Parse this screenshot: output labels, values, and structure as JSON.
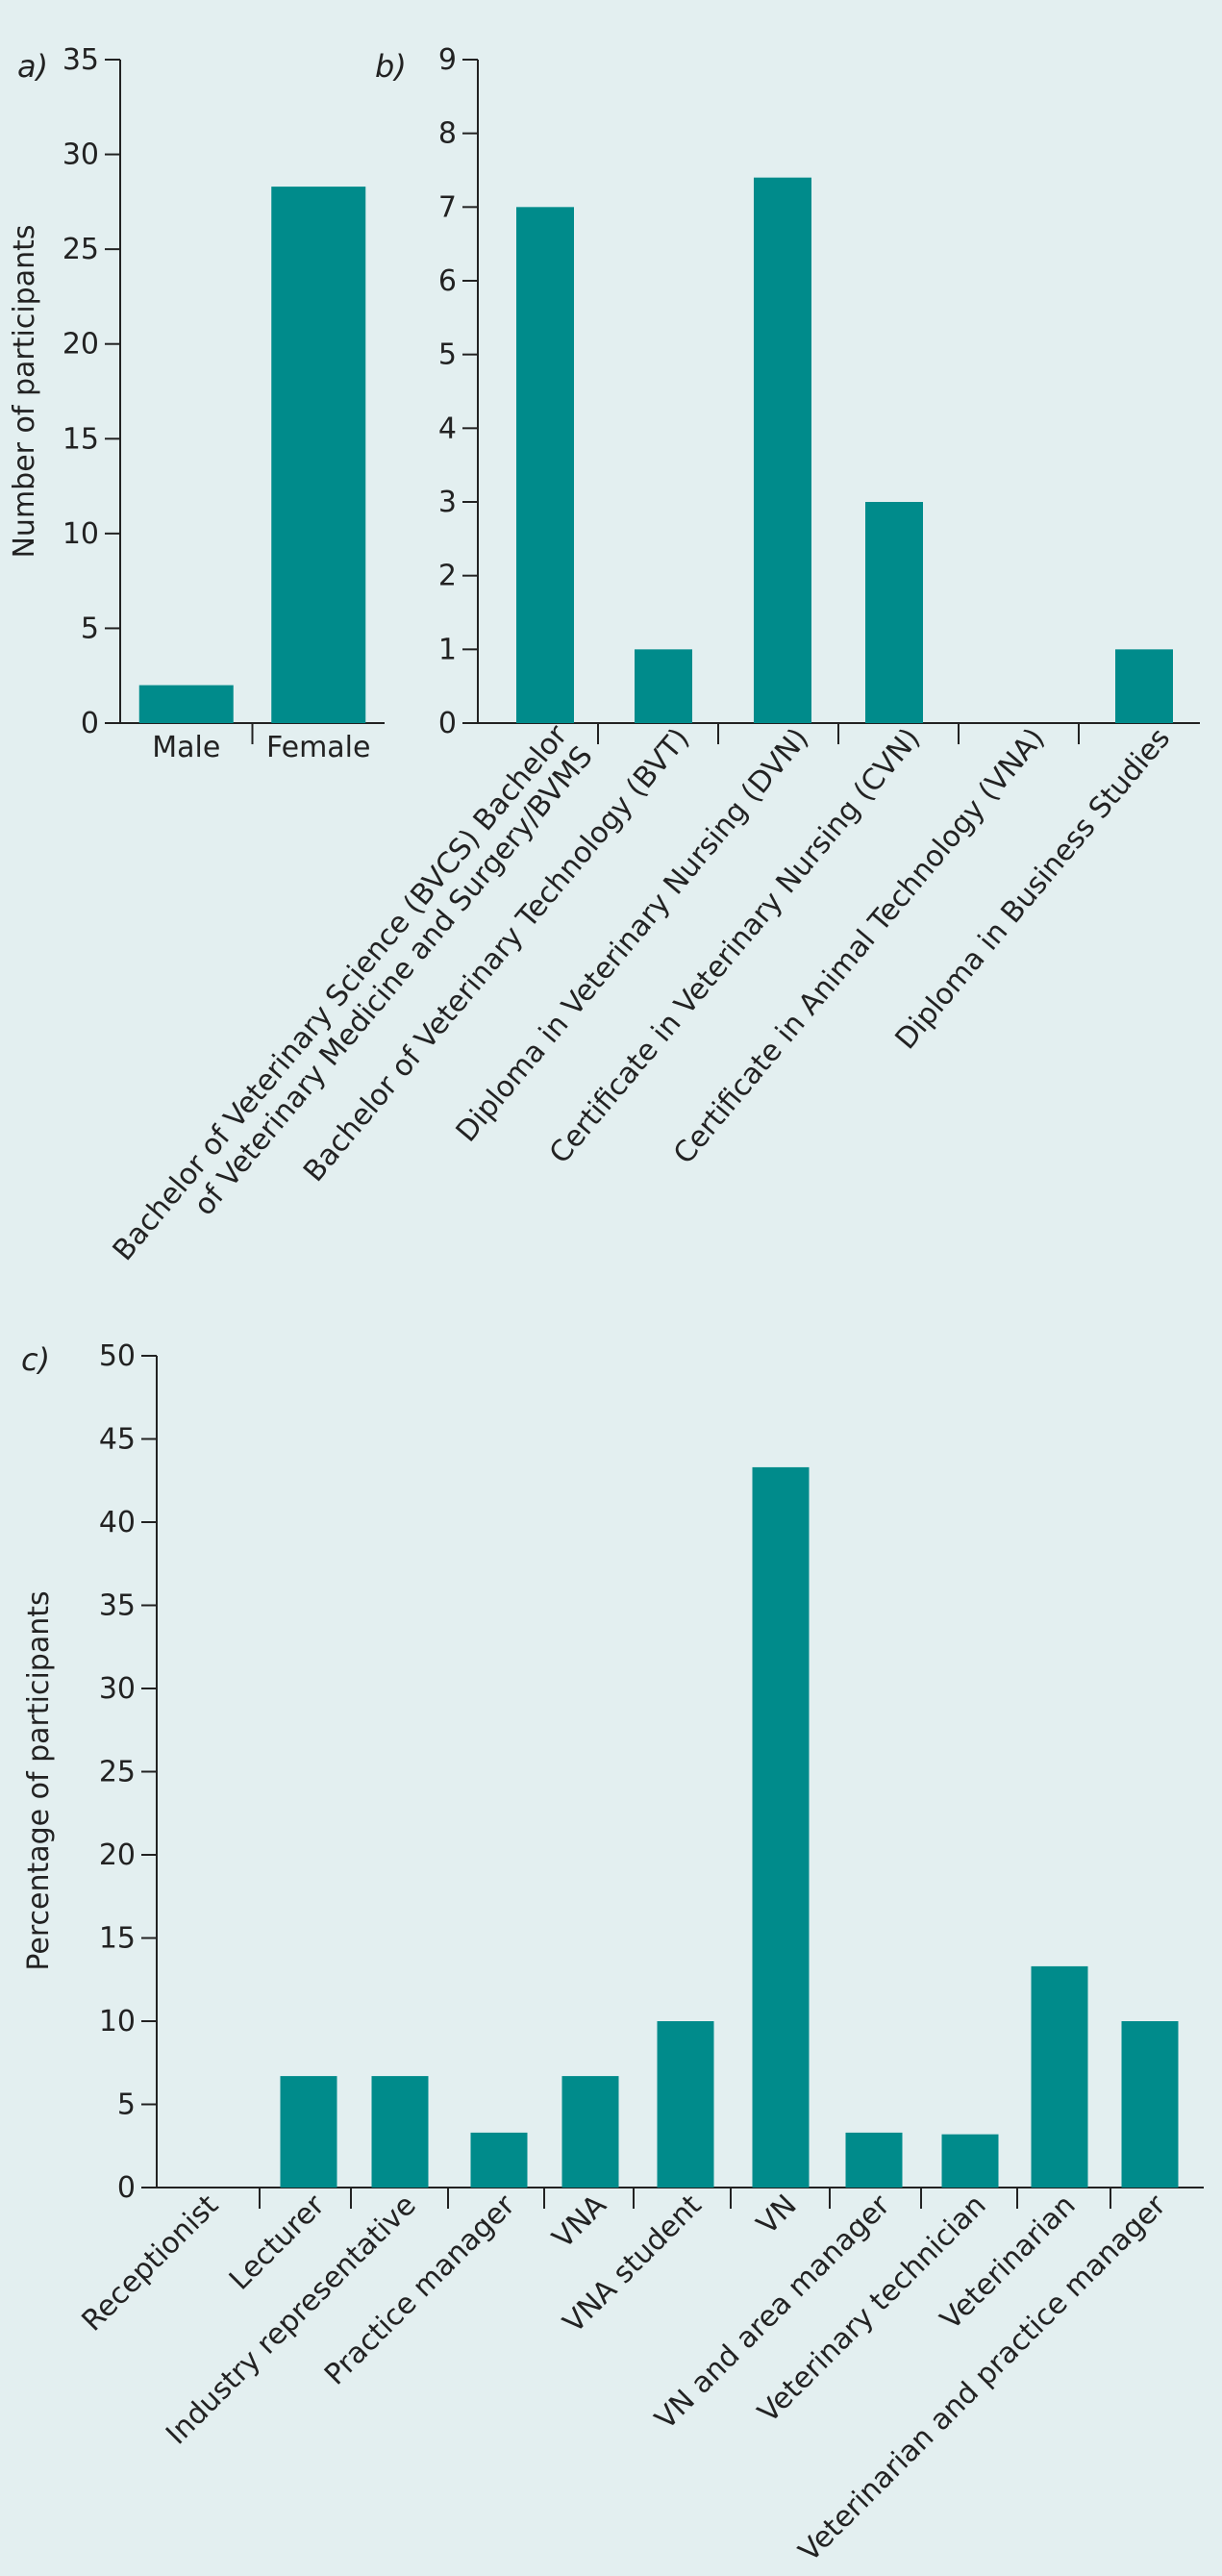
{
  "chart_data": [
    {
      "panel": "a)",
      "type": "bar",
      "categories": [
        "Male",
        "Female"
      ],
      "values": [
        2,
        28.3
      ],
      "ylabel": "Number of participants",
      "ylim": [
        0,
        35
      ],
      "yticks": [
        "0",
        "5",
        "10",
        "15",
        "20",
        "25",
        "30",
        "35"
      ],
      "color": "#008b8b",
      "grid": false
    },
    {
      "panel": "b)",
      "type": "bar",
      "categories": [
        "Bachelor of Veterinary Science (BVCS) Bachelor of Veterinary Medicine and Surgery/BVMS",
        "Bachelor of Veterinary Technology (BVT)",
        "Diploma in Veterinary Nursing (DVN)",
        "Certificate in Veterinary Nursing (CVN)",
        "Certificate in Animal Technology (VNA)",
        "Diploma in Business Studies"
      ],
      "category_lines": [
        [
          "Bachelor of Veterinary Science (BVCS) Bachelor",
          "of Veterinary Medicine and Surgery/BVMS"
        ],
        [
          "Bachelor of Veterinary Technology (BVT)"
        ],
        [
          "Diploma in Veterinary Nursing (DVN)"
        ],
        [
          "Certificate in Veterinary Nursing (CVN)"
        ],
        [
          "Certificate in Animal Technology (VNA)"
        ],
        [
          "Diploma in Business Studies"
        ]
      ],
      "values": [
        7,
        1,
        7.4,
        3,
        0,
        1
      ],
      "ylabel": "",
      "ylim": [
        0,
        9
      ],
      "yticks": [
        "0",
        "1",
        "2",
        "3",
        "4",
        "5",
        "6",
        "7",
        "8",
        "9"
      ],
      "color": "#008b8b",
      "grid": false
    },
    {
      "panel": "c)",
      "type": "bar",
      "categories": [
        "Receptionist",
        "Lecturer",
        "Industry representative",
        "Practice manager",
        "VNA",
        "VNA student",
        "VN",
        "VN and area manager",
        "Veterinary technician",
        "Veterinarian",
        "Veterinarian and practice manager"
      ],
      "values": [
        0,
        6.7,
        6.7,
        3.3,
        6.7,
        10,
        43.3,
        3.3,
        3.2,
        13.3,
        10
      ],
      "ylabel": "Percentage of participants",
      "ylim": [
        0,
        50
      ],
      "yticks": [
        "0",
        "5",
        "10",
        "15",
        "20",
        "25",
        "30",
        "35",
        "40",
        "45",
        "50"
      ],
      "color": "#008b8b",
      "grid": false
    }
  ]
}
